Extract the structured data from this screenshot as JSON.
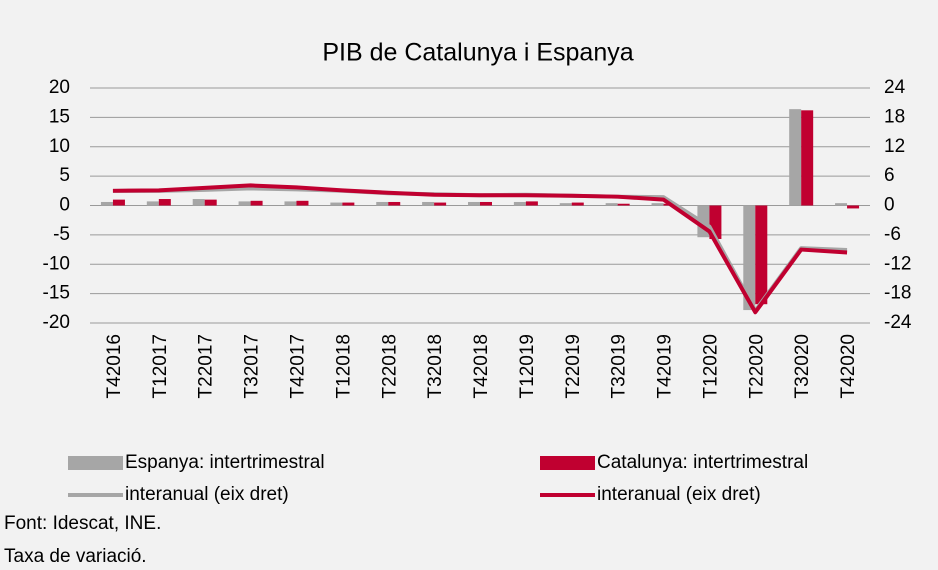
{
  "chart_data": {
    "type": "bar",
    "title": "PIB de Catalunya i Espanya",
    "categories": [
      "T42016",
      "T12017",
      "T22017",
      "T32017",
      "T42017",
      "T12018",
      "T22018",
      "T32018",
      "T42018",
      "T12019",
      "T22019",
      "T32019",
      "T42019",
      "T12020",
      "T22020",
      "T32020",
      "T42020"
    ],
    "series": [
      {
        "name": "Espanya: intertrimestral",
        "type": "bar",
        "color": "#a6a6a6",
        "values": [
          0.6,
          0.7,
          1.1,
          0.7,
          0.7,
          0.5,
          0.6,
          0.6,
          0.6,
          0.6,
          0.4,
          0.4,
          0.4,
          -5.4,
          -17.8,
          16.4,
          0.4
        ]
      },
      {
        "name": "Catalunya: intertrimestral",
        "type": "bar",
        "color": "#c00030",
        "values": [
          1.0,
          1.1,
          1.0,
          0.8,
          0.8,
          0.5,
          0.6,
          0.5,
          0.6,
          0.7,
          0.5,
          0.3,
          0.3,
          -5.7,
          -16.8,
          16.2,
          -0.5
        ]
      },
      {
        "name": "interanual (eix dret)",
        "type": "line",
        "axis": "y2",
        "color": "#a6a6a6",
        "values": [
          3.0,
          3.0,
          3.2,
          3.5,
          3.3,
          3.0,
          2.5,
          2.3,
          2.1,
          2.2,
          2.0,
          1.8,
          1.7,
          -4.3,
          -21.5,
          -8.7,
          -9.1
        ]
      },
      {
        "name": "interanual (eix dret)",
        "type": "line",
        "axis": "y2",
        "color": "#c00030",
        "values": [
          3.0,
          3.1,
          3.6,
          4.1,
          3.7,
          3.1,
          2.6,
          2.2,
          2.1,
          2.1,
          2.0,
          1.8,
          1.2,
          -5.3,
          -21.8,
          -9.0,
          -9.6
        ]
      }
    ],
    "ylim": [
      -20,
      20
    ],
    "yticks": [
      -20,
      -15,
      -10,
      -5,
      0,
      5,
      10,
      15,
      20
    ],
    "y2lim": [
      -24,
      24
    ],
    "y2ticks": [
      -24,
      -18,
      -12,
      -6,
      0,
      6,
      12,
      18,
      24
    ],
    "grid": true,
    "notes": [
      "Font: Idescat, INE.",
      "Taxa de variació."
    ]
  }
}
